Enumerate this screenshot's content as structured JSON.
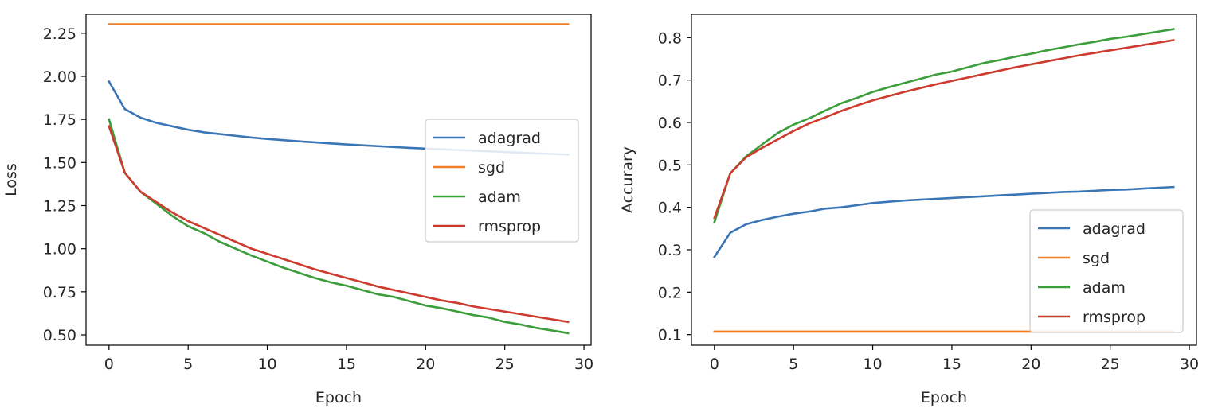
{
  "chart_data": [
    {
      "type": "line",
      "title": "",
      "xlabel": "Epoch",
      "ylabel": "Loss",
      "xlim": [
        -1.45,
        30.45
      ],
      "ylim": [
        0.44,
        2.36
      ],
      "xticks": [
        0,
        5,
        10,
        15,
        20,
        25,
        30
      ],
      "yticks": [
        0.5,
        0.75,
        1.0,
        1.25,
        1.5,
        1.75,
        2.0,
        2.25
      ],
      "ytick_labels": [
        "0.50",
        "0.75",
        "1.00",
        "1.25",
        "1.50",
        "1.75",
        "2.00",
        "2.25"
      ],
      "legend": "center-right",
      "grid": false,
      "x": [
        0,
        1,
        2,
        3,
        4,
        5,
        6,
        7,
        8,
        9,
        10,
        11,
        12,
        13,
        14,
        15,
        16,
        17,
        18,
        19,
        20,
        21,
        22,
        23,
        24,
        25,
        26,
        27,
        28,
        29
      ],
      "series": [
        {
          "name": "adagrad",
          "color": "#3a76b6",
          "values": [
            1.97,
            1.81,
            1.76,
            1.73,
            1.71,
            1.69,
            1.675,
            1.665,
            1.655,
            1.645,
            1.637,
            1.63,
            1.623,
            1.617,
            1.611,
            1.605,
            1.6,
            1.595,
            1.59,
            1.585,
            1.581,
            1.577,
            1.573,
            1.569,
            1.565,
            1.561,
            1.557,
            1.553,
            1.55,
            1.546
          ]
        },
        {
          "name": "sgd",
          "color": "#f07f29",
          "values": [
            2.302,
            2.302,
            2.302,
            2.302,
            2.302,
            2.302,
            2.302,
            2.302,
            2.302,
            2.302,
            2.302,
            2.302,
            2.302,
            2.302,
            2.302,
            2.302,
            2.302,
            2.302,
            2.302,
            2.302,
            2.302,
            2.302,
            2.302,
            2.302,
            2.302,
            2.302,
            2.302,
            2.302,
            2.302,
            2.302
          ]
        },
        {
          "name": "adam",
          "color": "#3c9e3a",
          "values": [
            1.75,
            1.44,
            1.33,
            1.26,
            1.19,
            1.13,
            1.09,
            1.04,
            1.0,
            0.96,
            0.925,
            0.89,
            0.86,
            0.83,
            0.805,
            0.785,
            0.76,
            0.735,
            0.72,
            0.695,
            0.67,
            0.655,
            0.635,
            0.615,
            0.6,
            0.575,
            0.56,
            0.54,
            0.525,
            0.51
          ]
        },
        {
          "name": "rmsprop",
          "color": "#cd3b2e",
          "values": [
            1.71,
            1.44,
            1.33,
            1.27,
            1.21,
            1.16,
            1.12,
            1.08,
            1.04,
            1.0,
            0.97,
            0.94,
            0.91,
            0.88,
            0.855,
            0.83,
            0.805,
            0.78,
            0.76,
            0.74,
            0.72,
            0.7,
            0.685,
            0.665,
            0.65,
            0.635,
            0.62,
            0.605,
            0.59,
            0.575
          ]
        }
      ]
    },
    {
      "type": "line",
      "title": "",
      "xlabel": "Epoch",
      "ylabel": "Accurary",
      "xlim": [
        -1.45,
        30.45
      ],
      "ylim": [
        0.075,
        0.855
      ],
      "xticks": [
        0,
        5,
        10,
        15,
        20,
        25,
        30
      ],
      "yticks": [
        0.1,
        0.2,
        0.3,
        0.4,
        0.5,
        0.6,
        0.7,
        0.8
      ],
      "ytick_labels": [
        "0.1",
        "0.2",
        "0.3",
        "0.4",
        "0.5",
        "0.6",
        "0.7",
        "0.8"
      ],
      "legend": "lower-right",
      "grid": false,
      "x": [
        0,
        1,
        2,
        3,
        4,
        5,
        6,
        7,
        8,
        9,
        10,
        11,
        12,
        13,
        14,
        15,
        16,
        17,
        18,
        19,
        20,
        21,
        22,
        23,
        24,
        25,
        26,
        27,
        28,
        29
      ],
      "series": [
        {
          "name": "adagrad",
          "color": "#3a76b6",
          "values": [
            0.283,
            0.34,
            0.36,
            0.37,
            0.378,
            0.385,
            0.39,
            0.397,
            0.4,
            0.405,
            0.41,
            0.413,
            0.416,
            0.418,
            0.42,
            0.422,
            0.424,
            0.426,
            0.428,
            0.43,
            0.432,
            0.434,
            0.436,
            0.437,
            0.439,
            0.441,
            0.442,
            0.444,
            0.446,
            0.448
          ]
        },
        {
          "name": "sgd",
          "color": "#f07f29",
          "values": [
            0.107,
            0.107,
            0.107,
            0.107,
            0.107,
            0.107,
            0.107,
            0.107,
            0.107,
            0.107,
            0.107,
            0.107,
            0.107,
            0.107,
            0.107,
            0.107,
            0.107,
            0.107,
            0.107,
            0.107,
            0.107,
            0.107,
            0.107,
            0.107,
            0.107,
            0.107,
            0.107,
            0.107,
            0.107,
            0.107
          ]
        },
        {
          "name": "adam",
          "color": "#3c9e3a",
          "values": [
            0.365,
            0.48,
            0.52,
            0.548,
            0.575,
            0.595,
            0.61,
            0.628,
            0.645,
            0.658,
            0.672,
            0.683,
            0.693,
            0.703,
            0.713,
            0.72,
            0.73,
            0.74,
            0.747,
            0.755,
            0.762,
            0.77,
            0.777,
            0.784,
            0.79,
            0.797,
            0.802,
            0.808,
            0.814,
            0.82
          ]
        },
        {
          "name": "rmsprop",
          "color": "#cd3b2e",
          "values": [
            0.375,
            0.48,
            0.518,
            0.54,
            0.56,
            0.58,
            0.598,
            0.612,
            0.627,
            0.64,
            0.652,
            0.662,
            0.672,
            0.681,
            0.69,
            0.698,
            0.706,
            0.714,
            0.722,
            0.73,
            0.737,
            0.744,
            0.751,
            0.758,
            0.764,
            0.77,
            0.776,
            0.782,
            0.788,
            0.794
          ]
        }
      ]
    }
  ]
}
